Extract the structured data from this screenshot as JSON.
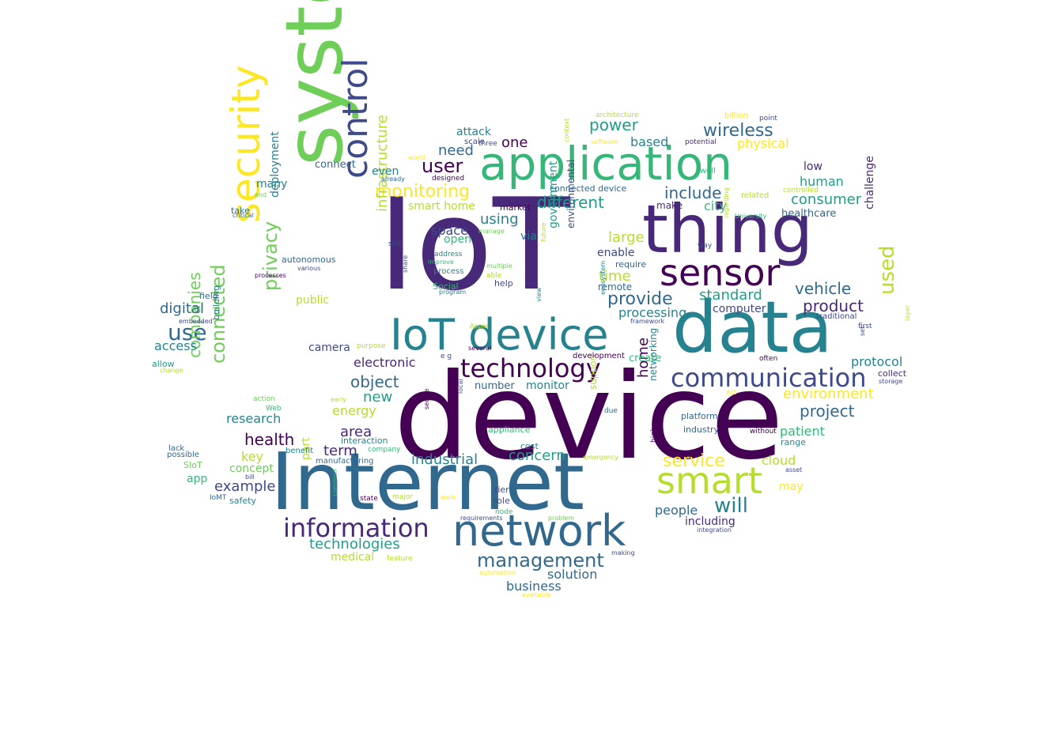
{
  "palette": {
    "c1": "#440154",
    "c2": "#482878",
    "c3": "#3e4a89",
    "c4": "#31688e",
    "c5": "#26828e",
    "c6": "#1f9e89",
    "c7": "#35b779",
    "c8": "#6ece58",
    "c9": "#b5de2b",
    "c10": "#fde725"
  },
  "words": [
    {
      "text": "IoT",
      "color": "#482878"
    },
    {
      "text": "device",
      "color": "#440154"
    },
    {
      "text": "Internet",
      "color": "#31688e"
    },
    {
      "text": "system",
      "color": "#6ece58"
    },
    {
      "text": "data",
      "color": "#26828e"
    },
    {
      "text": "thing",
      "color": "#482878"
    },
    {
      "text": "application",
      "color": "#35b779"
    },
    {
      "text": "network",
      "color": "#31688e"
    },
    {
      "text": "IoT device",
      "color": "#26828e"
    },
    {
      "text": "security",
      "color": "#fde725"
    },
    {
      "text": "sensor",
      "color": "#440154"
    },
    {
      "text": "smart",
      "color": "#b5de2b"
    },
    {
      "text": "control",
      "color": "#3e4a89"
    },
    {
      "text": "technology",
      "color": "#440154"
    },
    {
      "text": "communication",
      "color": "#3e4a89"
    },
    {
      "text": "information",
      "color": "#482878"
    },
    {
      "text": "management",
      "color": "#31688e"
    },
    {
      "text": "privacy",
      "color": "#6ece58"
    },
    {
      "text": "use",
      "color": "#31688e"
    },
    {
      "text": "used",
      "color": "#b5de2b"
    },
    {
      "text": "monitoring",
      "color": "#fde725"
    },
    {
      "text": "connected",
      "color": "#6ece58"
    },
    {
      "text": "user",
      "color": "#440154"
    },
    {
      "text": "vehicle",
      "color": "#31688e"
    },
    {
      "text": "will",
      "color": "#26828e"
    },
    {
      "text": "provide",
      "color": "#31688e"
    },
    {
      "text": "project",
      "color": "#31688e"
    },
    {
      "text": "service",
      "color": "#fde725"
    },
    {
      "text": "technologies",
      "color": "#1f9e89"
    },
    {
      "text": "infrastructure",
      "color": "#b5de2b"
    },
    {
      "text": "wireless",
      "color": "#31688e"
    },
    {
      "text": "include",
      "color": "#31688e"
    },
    {
      "text": "companies",
      "color": "#6ece58"
    },
    {
      "text": "different",
      "color": "#1f9e89"
    },
    {
      "text": "standard",
      "color": "#1f9e89"
    },
    {
      "text": "power",
      "color": "#1f9e89"
    },
    {
      "text": "example",
      "color": "#3e4a89"
    },
    {
      "text": "product",
      "color": "#482878"
    },
    {
      "text": "health",
      "color": "#440154"
    },
    {
      "text": "home",
      "color": "#440154"
    },
    {
      "text": "object",
      "color": "#31688e"
    },
    {
      "text": "industrial",
      "color": "#26828e"
    },
    {
      "text": "concern",
      "color": "#1f9e89"
    },
    {
      "text": "environment",
      "color": "#fde725"
    },
    {
      "text": "people",
      "color": "#31688e"
    },
    {
      "text": "including",
      "color": "#482878"
    },
    {
      "text": "consumer",
      "color": "#1f9e89"
    },
    {
      "text": "digital",
      "color": "#31688e"
    },
    {
      "text": "access",
      "color": "#26828e"
    },
    {
      "text": "using",
      "color": "#26828e"
    },
    {
      "text": "based",
      "color": "#26828e"
    },
    {
      "text": "time",
      "color": "#b5de2b"
    },
    {
      "text": "area",
      "color": "#482878"
    },
    {
      "text": "term",
      "color": "#482878"
    },
    {
      "text": "need",
      "color": "#31688e"
    },
    {
      "text": "one",
      "color": "#440154"
    },
    {
      "text": "large",
      "color": "#b5de2b"
    },
    {
      "text": "cloud",
      "color": "#b5de2b"
    },
    {
      "text": "patient",
      "color": "#35b779"
    },
    {
      "text": "human",
      "color": "#1f9e89"
    },
    {
      "text": "city",
      "color": "#35b779"
    },
    {
      "text": "new",
      "color": "#1f9e89"
    },
    {
      "text": "physical",
      "color": "#fde725"
    },
    {
      "text": "space",
      "color": "#3e4a89"
    },
    {
      "text": "deployment",
      "color": "#26828e"
    },
    {
      "text": "electronic",
      "color": "#482878"
    },
    {
      "text": "protocol",
      "color": "#26828e"
    },
    {
      "text": "energy",
      "color": "#b5de2b"
    },
    {
      "text": "research",
      "color": "#26828e"
    },
    {
      "text": "challenge",
      "color": "#482878"
    },
    {
      "text": "government",
      "color": "#1f9e89"
    },
    {
      "text": "processing",
      "color": "#26828e"
    },
    {
      "text": "enable",
      "color": "#3e4a89"
    },
    {
      "text": "business",
      "color": "#31688e"
    },
    {
      "text": "solution",
      "color": "#31688e"
    },
    {
      "text": "key",
      "color": "#b5de2b"
    },
    {
      "text": "many",
      "color": "#26828e"
    },
    {
      "text": "medical",
      "color": "#b5de2b"
    },
    {
      "text": "concept",
      "color": "#6ece58"
    },
    {
      "text": "environmental",
      "color": "#3e4a89"
    },
    {
      "text": "computer",
      "color": "#3e4a89"
    },
    {
      "text": "camera",
      "color": "#3e4a89"
    },
    {
      "text": "healthcare",
      "color": "#31688e"
    },
    {
      "text": "low",
      "color": "#482878"
    },
    {
      "text": "networking",
      "color": "#26828e"
    },
    {
      "text": "smart home",
      "color": "#b5de2b"
    },
    {
      "text": "even",
      "color": "#26828e"
    },
    {
      "text": "make",
      "color": "#482878"
    },
    {
      "text": "monitor",
      "color": "#26828e"
    },
    {
      "text": "public",
      "color": "#b5de2b"
    },
    {
      "text": "connect",
      "color": "#31688e"
    },
    {
      "text": "may",
      "color": "#fde725"
    },
    {
      "text": "number",
      "color": "#31688e"
    },
    {
      "text": "create",
      "color": "#35b779"
    },
    {
      "text": "via",
      "color": "#26828e"
    },
    {
      "text": "attack",
      "color": "#26828e"
    },
    {
      "text": "open",
      "color": "#35b779"
    },
    {
      "text": "support",
      "color": "#b5de2b"
    },
    {
      "text": "app",
      "color": "#35b779"
    },
    {
      "text": "remote",
      "color": "#31688e"
    },
    {
      "text": "part",
      "color": "#b5de2b"
    },
    {
      "text": "building",
      "color": "#26828e"
    },
    {
      "text": "autonomous",
      "color": "#31688e"
    },
    {
      "text": "allow",
      "color": "#1f9e89"
    },
    {
      "text": "connected device",
      "color": "#31688e"
    },
    {
      "text": "take",
      "color": "#31688e"
    },
    {
      "text": "field",
      "color": "#31688e"
    },
    {
      "text": "platform",
      "color": "#31688e"
    },
    {
      "text": "industry",
      "color": "#31688e"
    },
    {
      "text": "Social",
      "color": "#35b779"
    },
    {
      "text": "help",
      "color": "#3e4a89"
    },
    {
      "text": "safety",
      "color": "#26828e"
    },
    {
      "text": "SIoT",
      "color": "#6ece58"
    },
    {
      "text": "appliance",
      "color": "#35b779"
    },
    {
      "text": "cost",
      "color": "#26828e"
    },
    {
      "text": "interaction",
      "color": "#26828e"
    },
    {
      "text": "market",
      "color": "#440154"
    },
    {
      "text": "range",
      "color": "#26828e"
    },
    {
      "text": "tier",
      "color": "#3e4a89"
    },
    {
      "text": "role",
      "color": "#3e4a89"
    },
    {
      "text": "possible",
      "color": "#31688e"
    },
    {
      "text": "lack",
      "color": "#31688e"
    },
    {
      "text": "process",
      "color": "#26828e"
    },
    {
      "text": "scale",
      "color": "#3e4a89"
    },
    {
      "text": "require",
      "color": "#31688e"
    },
    {
      "text": "IoMT",
      "color": "#31688e"
    },
    {
      "text": "collect",
      "color": "#482878"
    },
    {
      "text": "development",
      "color": "#440154"
    },
    {
      "text": "designed",
      "color": "#440154"
    },
    {
      "text": "manufacturing",
      "color": "#31688e"
    },
    {
      "text": "company",
      "color": "#35b779"
    },
    {
      "text": "benefit",
      "color": "#26828e"
    },
    {
      "text": "Web",
      "color": "#35b779"
    },
    {
      "text": "state",
      "color": "#440154"
    },
    {
      "text": "major",
      "color": "#b5de2b"
    },
    {
      "text": "node",
      "color": "#35b779"
    },
    {
      "text": "first",
      "color": "#3e4a89"
    },
    {
      "text": "traditional",
      "color": "#3e4a89"
    },
    {
      "text": "architecture",
      "color": "#b5de2b"
    },
    {
      "text": "billion",
      "color": "#fde725"
    },
    {
      "text": "point",
      "color": "#3e4a89"
    },
    {
      "text": "software",
      "color": "#fde725"
    },
    {
      "text": "potential",
      "color": "#482878"
    },
    {
      "text": "well",
      "color": "#35b779"
    },
    {
      "text": "controlled",
      "color": "#b5de2b"
    },
    {
      "text": "related",
      "color": "#b5de2b"
    },
    {
      "text": "University",
      "color": "#35b779"
    },
    {
      "text": "way",
      "color": "#3e4a89"
    },
    {
      "text": "three",
      "color": "#3e4a89"
    },
    {
      "text": "already",
      "color": "#31688e"
    },
    {
      "text": "world",
      "color": "#fde725"
    },
    {
      "text": "end",
      "color": "#6ece58"
    },
    {
      "text": "critical",
      "color": "#31688e"
    },
    {
      "text": "still",
      "color": "#3e4a89"
    },
    {
      "text": "address",
      "color": "#26828e"
    },
    {
      "text": "various",
      "color": "#3e4a89"
    },
    {
      "text": "processes",
      "color": "#440154"
    },
    {
      "text": "improve",
      "color": "#35b779"
    },
    {
      "text": "able",
      "color": "#b5de2b"
    },
    {
      "text": "multiple",
      "color": "#6ece58"
    },
    {
      "text": "manage",
      "color": "#6ece58"
    },
    {
      "text": "program",
      "color": "#26828e"
    },
    {
      "text": "embedded",
      "color": "#3e4a89"
    },
    {
      "text": "change",
      "color": "#b5de2b"
    },
    {
      "text": "Apple",
      "color": "#b5de2b"
    },
    {
      "text": "purpose",
      "color": "#b5de2b"
    },
    {
      "text": "several",
      "color": "#440154"
    },
    {
      "text": "e g",
      "color": "#3e4a89"
    },
    {
      "text": "action",
      "color": "#6ece58"
    },
    {
      "text": "early",
      "color": "#b5de2b"
    },
    {
      "text": "due",
      "color": "#31688e"
    },
    {
      "text": "emergency",
      "color": "#b5de2b"
    },
    {
      "text": "without",
      "color": "#440154"
    },
    {
      "text": "asset",
      "color": "#3e4a89"
    },
    {
      "text": "bill",
      "color": "#3e4a89"
    },
    {
      "text": "work",
      "color": "#fde725"
    },
    {
      "text": "requirements",
      "color": "#3e4a89"
    },
    {
      "text": "problem",
      "color": "#6ece58"
    },
    {
      "text": "making",
      "color": "#3e4a89"
    },
    {
      "text": "feature",
      "color": "#b5de2b"
    },
    {
      "text": "integration",
      "color": "#3e4a89"
    },
    {
      "text": "automation",
      "color": "#fde725"
    },
    {
      "text": "available",
      "color": "#fde725"
    },
    {
      "text": "often",
      "color": "#440154"
    },
    {
      "text": "storage",
      "color": "#3e4a89"
    },
    {
      "text": "Act",
      "color": "#fde725"
    },
    {
      "text": "framework",
      "color": "#3e4a89"
    },
    {
      "text": "context",
      "color": "#b5de2b"
    },
    {
      "text": "future",
      "color": "#b5de2b"
    },
    {
      "text": "view",
      "color": "#26828e"
    },
    {
      "text": "ecosystem",
      "color": "#26828e"
    },
    {
      "text": "regarding",
      "color": "#b5de2b"
    },
    {
      "text": "share",
      "color": "#3e4a89"
    },
    {
      "text": "secure",
      "color": "#440154"
    },
    {
      "text": "local",
      "color": "#3e4a89"
    },
    {
      "text": "high",
      "color": "#440154"
    },
    {
      "text": "set",
      "color": "#3e4a89"
    },
    {
      "text": "layer",
      "color": "#b5de2b"
    },
    {
      "text": "common",
      "color": "#35b779"
    }
  ]
}
